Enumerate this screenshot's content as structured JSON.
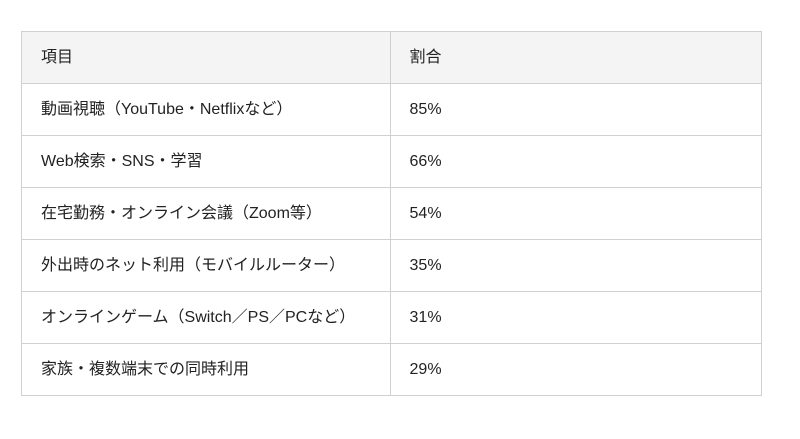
{
  "table": {
    "headers": [
      {
        "label": "項目"
      },
      {
        "label": "割合"
      }
    ],
    "rows": [
      {
        "item": "動画視聴（YouTube・Netflixなど）",
        "value": "85%"
      },
      {
        "item": "Web検索・SNS・学習",
        "value": "66%"
      },
      {
        "item": "在宅勤務・オンライン会議（Zoom等）",
        "value": "54%"
      },
      {
        "item": "外出時のネット利用（モバイルルーター）",
        "value": "35%"
      },
      {
        "item": "オンラインゲーム（Switch／PS／PCなど）",
        "value": "31%"
      },
      {
        "item": "家族・複数端末での同時利用",
        "value": "29%"
      }
    ]
  },
  "chart_data": {
    "type": "table",
    "columns": [
      "項目",
      "割合"
    ],
    "categories": [
      "動画視聴（YouTube・Netflixなど）",
      "Web検索・SNS・学習",
      "在宅勤務・オンライン会議（Zoom等）",
      "外出時のネット利用（モバイルルーター）",
      "オンラインゲーム（Switch／PS／PCなど）",
      "家族・複数端末での同時利用"
    ],
    "values": [
      85,
      66,
      54,
      35,
      31,
      29
    ],
    "unit": "%",
    "title": "",
    "xlabel": "",
    "ylabel": ""
  },
  "colors": {
    "header_background": "#f4f4f4",
    "border": "#d0d0d0",
    "text": "#222222",
    "page_background": "#ffffff"
  }
}
